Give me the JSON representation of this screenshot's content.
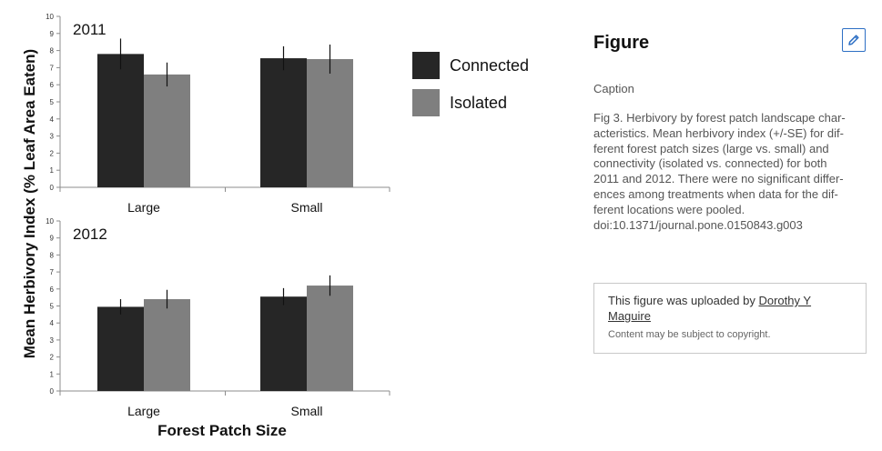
{
  "figure": {
    "y_axis_label": "Mean Herbivory Index (% Leaf Area Eaten)",
    "x_axis_label": "Forest Patch Size",
    "legend": [
      {
        "label": "Connected",
        "color": "#262626"
      },
      {
        "label": "Isolated",
        "color": "#7f7f7f"
      }
    ]
  },
  "chart_data": [
    {
      "type": "bar",
      "title": "2011",
      "categories": [
        "Large",
        "Small"
      ],
      "series": [
        {
          "name": "Connected",
          "values": [
            7.8,
            7.55
          ],
          "errors": [
            0.9,
            0.7
          ]
        },
        {
          "name": "Isolated",
          "values": [
            6.6,
            7.5
          ],
          "errors": [
            0.7,
            0.85
          ]
        }
      ],
      "ylim": [
        0,
        10
      ],
      "yticks": [
        0,
        1,
        2,
        3,
        4,
        5,
        6,
        7,
        8,
        9,
        10
      ],
      "ylabel": "Mean Herbivory Index (% Leaf Area Eaten)",
      "xlabel": "Forest Patch Size",
      "legend_position": "right",
      "grid": false
    },
    {
      "type": "bar",
      "title": "2012",
      "categories": [
        "Large",
        "Small"
      ],
      "series": [
        {
          "name": "Connected",
          "values": [
            4.95,
            5.55
          ],
          "errors": [
            0.45,
            0.5
          ]
        },
        {
          "name": "Isolated",
          "values": [
            5.4,
            6.2
          ],
          "errors": [
            0.55,
            0.6
          ]
        }
      ],
      "ylim": [
        0,
        10
      ],
      "yticks": [
        0,
        1,
        2,
        3,
        4,
        5,
        6,
        7,
        8,
        9,
        10
      ],
      "ylabel": "Mean Herbivory Index (% Leaf Area Eaten)",
      "xlabel": "Forest Patch Size",
      "legend_position": "right",
      "grid": false
    }
  ],
  "panel": {
    "title": "Figure",
    "edit_icon": "pencil-icon",
    "accent_color": "#2d6fc4",
    "caption_heading": "Caption",
    "caption_lines": [
      "Fig 3. Herbivory by forest patch landscape char-",
      "acteristics. Mean herbivory index (+/-SE) for dif-",
      "ferent forest patch sizes (large vs. small) and",
      "connectivity (isolated vs. connected) for both",
      "2011 and 2012. There were no significant differ-",
      "ences among treatments when data for the dif-",
      "ferent locations were pooled.",
      "doi:10.1371/journal.pone.0150843.g003"
    ],
    "upload": {
      "prefix": "This figure was uploaded by ",
      "uploader": "Dorothy Y Maguire",
      "note": "Content may be subject to copyright."
    }
  }
}
